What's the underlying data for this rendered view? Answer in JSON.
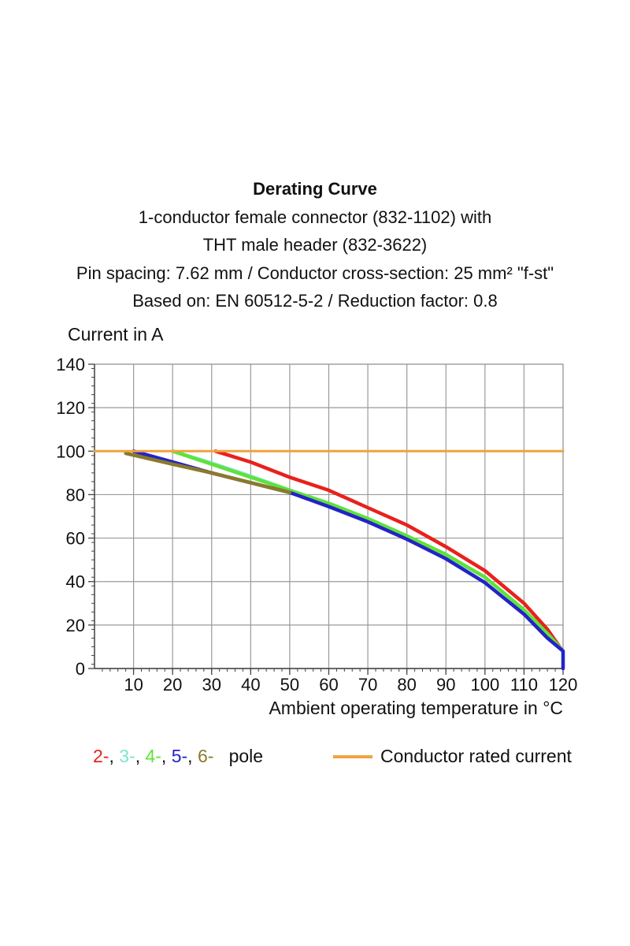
{
  "title_lines": [
    "Derating Curve",
    "1-conductor female connector (832-1102) with",
    "THT male header (832-3622)",
    "Pin spacing: 7.62 mm / Conductor cross-section: 25 mm² \"f-st\"",
    "Based on: EN 60512-5-2 / Reduction factor: 0.8"
  ],
  "legend": {
    "pole_items": [
      {
        "text": "2-",
        "color": "#e8211d"
      },
      {
        "text": "3-",
        "color": "#7fe3cf"
      },
      {
        "text": "4-",
        "color": "#5fe23a"
      },
      {
        "text": "5-",
        "color": "#2323c8"
      },
      {
        "text": "6-",
        "color": "#8a7a2a"
      }
    ],
    "pole_suffix": "pole",
    "rated_label": "Conductor rated current",
    "rated_color": "#f0a23f"
  },
  "chart_data": {
    "type": "line",
    "title": "Derating Curve",
    "xlabel": "Ambient operating temperature in °C",
    "ylabel": "Current in A",
    "xlim": [
      0,
      120
    ],
    "ylim": [
      0,
      140
    ],
    "xticks": [
      10,
      20,
      30,
      40,
      50,
      60,
      70,
      80,
      90,
      100,
      110,
      120
    ],
    "yticks": [
      0,
      20,
      40,
      60,
      80,
      100,
      120,
      140
    ],
    "grid": true,
    "legend_position": "bottom",
    "series": [
      {
        "name": "2-",
        "color": "#e8211d",
        "x": [
          31,
          40,
          50,
          60,
          70,
          80,
          90,
          100,
          110,
          116,
          119.5
        ],
        "y": [
          100,
          95,
          88,
          82,
          74,
          66,
          56,
          45,
          30,
          18,
          9
        ]
      },
      {
        "name": "3-",
        "color": "#7fe3cf",
        "x": [
          20,
          30,
          40,
          50,
          60,
          70,
          80,
          90,
          100,
          110,
          116,
          119.5
        ],
        "y": [
          100,
          94.5,
          88.5,
          82,
          76,
          69,
          61,
          52,
          42,
          27,
          16,
          9
        ]
      },
      {
        "name": "4-",
        "color": "#5fe23a",
        "x": [
          20,
          30,
          40,
          50,
          60,
          70,
          80,
          90,
          100,
          110,
          116,
          119.5
        ],
        "y": [
          100,
          94,
          88,
          82,
          76,
          69,
          61,
          52.5,
          42,
          27,
          16,
          9
        ]
      },
      {
        "name": "5-",
        "color": "#2323c8",
        "x": [
          10,
          20,
          30,
          40,
          50,
          60,
          70,
          80,
          90,
          100,
          110,
          116,
          120,
          120
        ],
        "y": [
          100,
          95,
          90,
          85.5,
          81,
          74.5,
          67.5,
          59.5,
          50.5,
          39.5,
          25,
          14,
          8,
          0
        ]
      },
      {
        "name": "6-",
        "color": "#8a7a2a",
        "x": [
          8,
          20,
          30,
          40,
          50
        ],
        "y": [
          99,
          94,
          90,
          85.5,
          81
        ]
      },
      {
        "name": "Conductor rated current",
        "color": "#f0a23f",
        "x": [
          0,
          120
        ],
        "y": [
          100,
          100
        ]
      }
    ]
  }
}
